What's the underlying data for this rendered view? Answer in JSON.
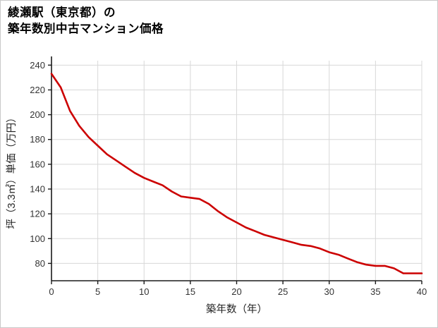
{
  "page": {
    "background": "#ffffff",
    "border_color": "#c9c9c9"
  },
  "title": {
    "line1": "綾瀬駅（東京都）の",
    "line2": "築年数別中古マンション価格"
  },
  "chart_data": {
    "type": "line",
    "title": "綾瀬駅（東京都）の築年数別中古マンション価格",
    "xlabel": "築年数（年）",
    "ylabel": "坪（3.3㎡）単価（万円）",
    "x": [
      0,
      1,
      2,
      3,
      4,
      5,
      6,
      7,
      8,
      9,
      10,
      11,
      12,
      13,
      14,
      15,
      16,
      17,
      18,
      19,
      20,
      21,
      22,
      23,
      24,
      25,
      26,
      27,
      28,
      29,
      30,
      31,
      32,
      33,
      34,
      35,
      36,
      37,
      38,
      39,
      40
    ],
    "values": [
      233,
      222,
      203,
      191,
      182,
      175,
      168,
      163,
      158,
      153,
      149,
      146,
      143,
      138,
      134,
      133,
      132,
      128,
      122,
      117,
      113,
      109,
      106,
      103,
      101,
      99,
      97,
      95,
      94,
      92,
      89,
      87,
      84,
      81,
      79,
      78,
      78,
      76,
      72,
      72,
      72
    ],
    "xlim": [
      0,
      40
    ],
    "ylim": [
      66,
      243.6
    ],
    "xticks": [
      0,
      5,
      10,
      15,
      20,
      25,
      30,
      35,
      40
    ],
    "yticks": [
      80,
      100,
      120,
      140,
      160,
      180,
      200,
      220,
      240
    ],
    "grid": true,
    "legend_position": "none",
    "line_color": "#cc0000",
    "line_width": 2.6,
    "grid_color": "#d8d8d8",
    "axis_color": "#1a1a1a",
    "tick_label_color": "#333333",
    "axis_label_color": "#222222"
  }
}
